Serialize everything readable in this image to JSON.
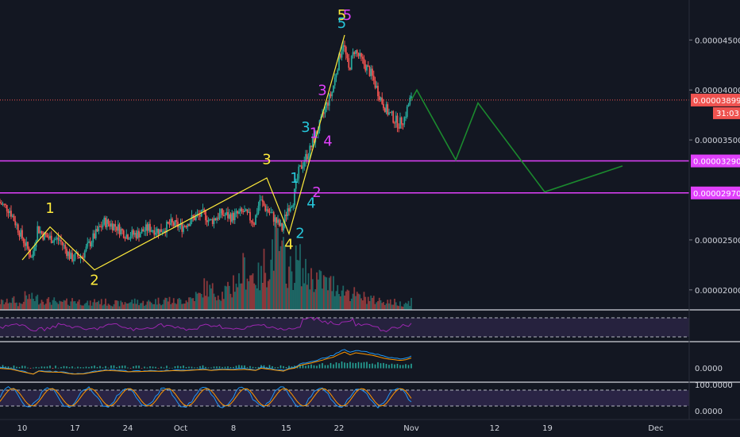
{
  "chart_data": {
    "type": "candlestick",
    "main_pane": {
      "y_ticks": [
        "0.00004500",
        "0.00004000",
        "0.00003500",
        "0.00002500",
        "0.00002000"
      ],
      "y_tick_values": [
        4.5e-05,
        4e-05,
        3.5e-05,
        2.5e-05,
        2e-05
      ],
      "ylim": [
        1.8e-05,
        4.9e-05
      ],
      "current_price": {
        "label": "0.00003899",
        "value": 3.899e-05,
        "color": "#ef5350"
      },
      "countdown": "31:03",
      "horizontal_levels": [
        {
          "label": "0.00003290",
          "value": 3.29e-05,
          "color": "#e040fb"
        },
        {
          "label": "0.00002970",
          "value": 2.97e-05,
          "color": "#e040fb"
        }
      ],
      "price_path": [
        [
          0,
          2.88e-05
        ],
        [
          2,
          2.8e-05
        ],
        [
          4,
          2.55e-05
        ],
        [
          6,
          2.32e-05
        ],
        [
          7,
          2.62e-05
        ],
        [
          8,
          2.55e-05
        ],
        [
          9,
          2.52e-05
        ],
        [
          11,
          2.5e-05
        ],
        [
          13,
          2.32e-05
        ],
        [
          15,
          2.34e-05
        ],
        [
          17,
          2.52e-05
        ],
        [
          19,
          2.68e-05
        ],
        [
          21,
          2.64e-05
        ],
        [
          23,
          2.55e-05
        ],
        [
          25,
          2.56e-05
        ],
        [
          27,
          2.62e-05
        ],
        [
          29,
          2.59e-05
        ],
        [
          31,
          2.66e-05
        ],
        [
          33,
          2.63e-05
        ],
        [
          35,
          2.72e-05
        ],
        [
          37,
          2.76e-05
        ],
        [
          38,
          2.68e-05
        ],
        [
          40,
          2.76e-05
        ],
        [
          42,
          2.73e-05
        ],
        [
          44,
          2.78e-05
        ],
        [
          46,
          2.68e-05
        ],
        [
          47,
          2.9e-05
        ],
        [
          48,
          2.82e-05
        ],
        [
          49,
          2.76e-05
        ],
        [
          50,
          2.68e-05
        ],
        [
          51,
          2.61e-05
        ],
        [
          52,
          2.82e-05
        ],
        [
          53,
          2.9e-05
        ],
        [
          54,
          3.18e-05
        ],
        [
          55,
          3.3e-05
        ],
        [
          56,
          3.4e-05
        ],
        [
          57,
          3.55e-05
        ],
        [
          58,
          3.68e-05
        ],
        [
          59,
          3.85e-05
        ],
        [
          60,
          3.98e-05
        ],
        [
          61,
          4.25e-05
        ],
        [
          62,
          4.48e-05
        ],
        [
          63,
          4.2e-05
        ],
        [
          64,
          4.4e-05
        ],
        [
          65,
          4.32e-05
        ],
        [
          66,
          4.24e-05
        ],
        [
          67,
          4.16e-05
        ],
        [
          68,
          4.02e-05
        ],
        [
          69,
          3.88e-05
        ],
        [
          70,
          3.78e-05
        ],
        [
          71,
          3.72e-05
        ],
        [
          72,
          3.66e-05
        ],
        [
          73,
          3.72e-05
        ],
        [
          74,
          3.9e-05
        ]
      ],
      "volume_path": [
        0.12,
        0.15,
        0.1,
        0.2,
        0.18,
        0.16,
        0.14,
        0.1,
        0.12,
        0.15,
        0.13,
        0.1,
        0.14,
        0.12,
        0.11,
        0.1,
        0.12,
        0.13,
        0.11,
        0.12,
        0.14,
        0.16,
        0.13,
        0.15,
        0.18,
        0.22,
        0.35,
        0.3,
        0.25,
        0.3,
        0.45,
        0.62,
        0.55,
        0.5,
        0.7,
        1.0,
        0.8,
        0.6,
        0.72,
        0.55,
        0.5,
        0.45,
        0.4,
        0.38,
        0.3,
        0.25,
        0.2,
        0.18,
        0.15,
        0.14,
        0.12,
        0.1,
        0.12,
        0.16
      ],
      "projection": [
        [
          74,
          3.9e-05
        ],
        [
          75,
          4e-05
        ],
        [
          82,
          3.3e-05
        ],
        [
          86,
          3.87e-05
        ],
        [
          98,
          2.98e-05
        ],
        [
          112,
          3.24e-05
        ]
      ],
      "yellow_waves": [
        [
          4,
          2.3e-05
        ],
        [
          9,
          2.63e-05
        ],
        [
          17,
          2.2e-05
        ],
        [
          48,
          3.12e-05
        ],
        [
          52,
          2.56e-05
        ],
        [
          62,
          4.55e-05
        ]
      ],
      "labels": [
        {
          "text": "1",
          "color": "#ffeb3b",
          "x": 9,
          "y": 2.77e-05
        },
        {
          "text": "2",
          "color": "#ffeb3b",
          "x": 17,
          "y": 2.05e-05
        },
        {
          "text": "3",
          "color": "#ffeb3b",
          "x": 48,
          "y": 3.26e-05
        },
        {
          "text": "4",
          "color": "#ffeb3b",
          "x": 52,
          "y": 2.41e-05
        },
        {
          "text": "5",
          "color": "#ffeb3b",
          "x": 61.5,
          "y": 4.7e-05
        },
        {
          "text": "1",
          "color": "#26c6da",
          "x": 53,
          "y": 3.07e-05
        },
        {
          "text": "2",
          "color": "#26c6da",
          "x": 54,
          "y": 2.52e-05
        },
        {
          "text": "3",
          "color": "#26c6da",
          "x": 55,
          "y": 3.58e-05
        },
        {
          "text": "4",
          "color": "#26c6da",
          "x": 56,
          "y": 2.82e-05
        },
        {
          "text": "5",
          "color": "#26c6da",
          "x": 61.5,
          "y": 4.62e-05
        },
        {
          "text": "1",
          "color": "#e040fb",
          "x": 56.5,
          "y": 3.52e-05
        },
        {
          "text": "2",
          "color": "#e040fb",
          "x": 57,
          "y": 2.93e-05
        },
        {
          "text": "3",
          "color": "#e040fb",
          "x": 58,
          "y": 3.95e-05
        },
        {
          "text": "4",
          "color": "#e040fb",
          "x": 59,
          "y": 3.44e-05
        },
        {
          "text": "5",
          "color": "#e040fb",
          "x": 62.5,
          "y": 4.7e-05
        }
      ]
    },
    "x_axis": {
      "labels": [
        "10",
        "17",
        "24",
        "Oct",
        "8",
        "15",
        "22",
        "Nov",
        "12",
        "19",
        "Dec"
      ],
      "positions": [
        4,
        13.5,
        23,
        32.5,
        42,
        51.5,
        61,
        74,
        89,
        98.5,
        118
      ]
    },
    "x_range": [
      0,
      124
    ],
    "rsi_pane": {
      "color": "#9c27b0"
    },
    "macd_pane": {
      "tick": "0.0000"
    },
    "stoch_pane": {
      "ticks": [
        "100.0000",
        "0.0000"
      ]
    }
  }
}
